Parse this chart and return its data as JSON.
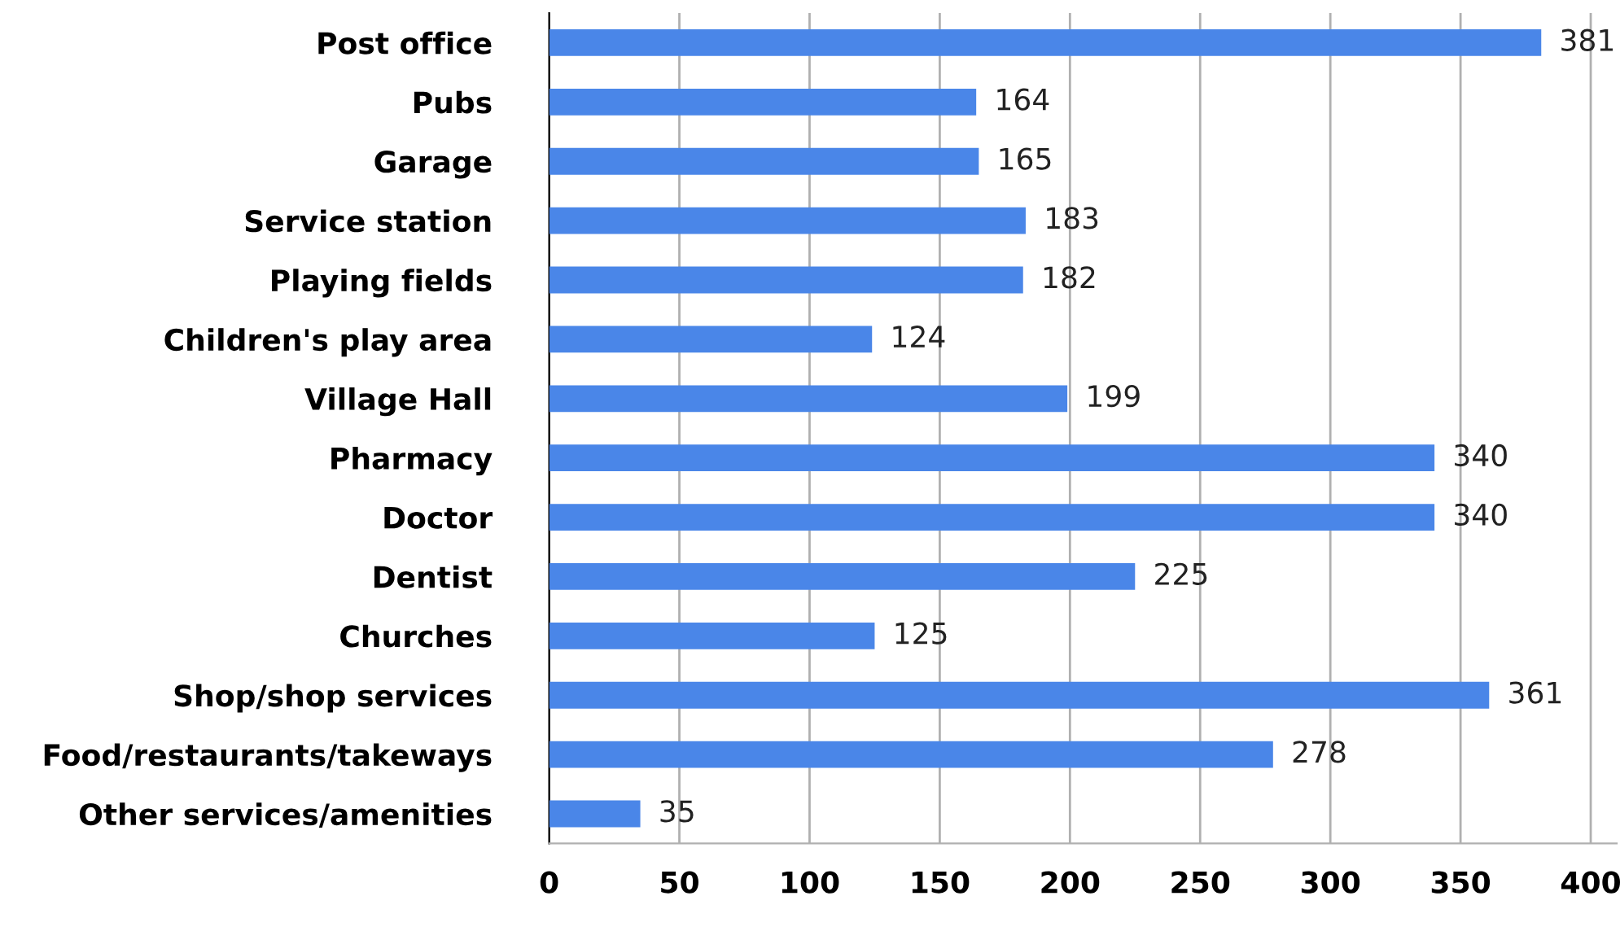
{
  "chart_data": {
    "type": "bar",
    "orientation": "horizontal",
    "categories": [
      "Post office",
      "Pubs",
      "Garage",
      "Service station",
      "Playing fields",
      "Children's play area",
      "Village Hall",
      "Pharmacy",
      "Doctor",
      "Dentist",
      "Churches",
      "Shop/shop services",
      "Food/restaurants/takeways",
      "Other services/amenities"
    ],
    "values": [
      381,
      164,
      165,
      183,
      182,
      124,
      199,
      340,
      340,
      225,
      125,
      361,
      278,
      35
    ],
    "color": "#4a86e8",
    "xlim": [
      0,
      410
    ],
    "xticks": [
      0,
      50,
      100,
      150,
      200,
      250,
      300,
      350,
      400
    ],
    "grid": "x",
    "data_labels": true,
    "legend": false
  }
}
